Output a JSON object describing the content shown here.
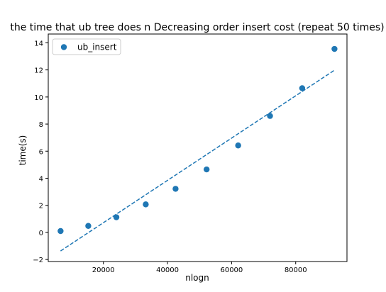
{
  "chart_data": {
    "type": "scatter",
    "title": "the time that ub tree does n Decreasing order insert cost (repeat 50 times)",
    "xlabel": "nlogn",
    "ylabel": "time(s)",
    "xlim": [
      2800,
      96000
    ],
    "ylim": [
      -2.15,
      14.65
    ],
    "xticks": [
      20000,
      40000,
      60000,
      80000
    ],
    "xtick_labels": [
      "20000",
      "40000",
      "60000",
      "80000"
    ],
    "yticks": [
      -2,
      0,
      2,
      4,
      6,
      8,
      10,
      12,
      14
    ],
    "ytick_labels": [
      "−2",
      "0",
      "2",
      "4",
      "6",
      "8",
      "10",
      "12",
      "14"
    ],
    "grid": false,
    "legend_position": "upper-left",
    "series": [
      {
        "name": "ub_insert",
        "kind": "scatter",
        "color": "#1f77b4",
        "x": [
          6644,
          15287,
          24055,
          33219,
          42521,
          52206,
          62052,
          71991,
          82023,
          92103
        ],
        "y": [
          0.1,
          0.48,
          1.12,
          2.07,
          3.22,
          4.65,
          6.42,
          8.6,
          10.65,
          13.55
        ]
      },
      {
        "name": "fit",
        "kind": "dashed-line",
        "color": "#1f77b4",
        "x": [
          6644,
          92103
        ],
        "y": [
          -1.37,
          11.98
        ]
      }
    ]
  }
}
